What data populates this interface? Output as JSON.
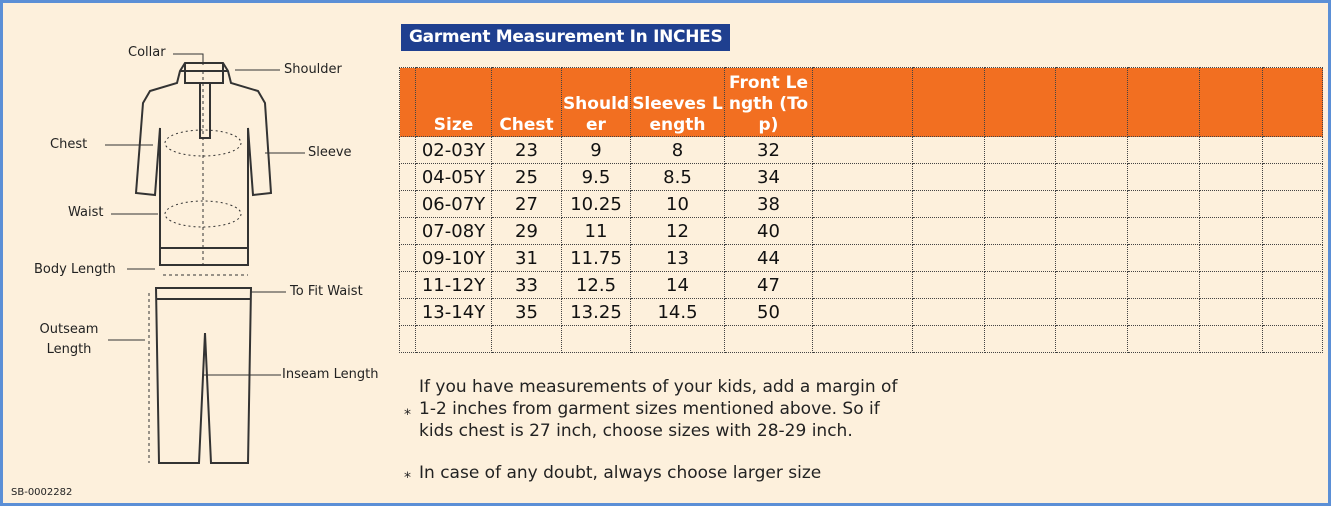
{
  "diagram": {
    "labels": [
      "Collar",
      "Shoulder",
      "Chest",
      "Sleeve",
      "Waist",
      "Body Length",
      "To Fit Waist",
      "Outseam Length",
      "Inseam Length"
    ]
  },
  "code": "SB-0002282",
  "title": "Garment Measurement In INCHES",
  "table": {
    "headers": [
      "Size",
      "Chest",
      "Shoulder",
      "Sleeves Length",
      "Front Length (Top)"
    ],
    "rows": [
      [
        "02-03Y",
        "23",
        "9",
        "8",
        "32"
      ],
      [
        "04-05Y",
        "25",
        "9.5",
        "8.5",
        "34"
      ],
      [
        "06-07Y",
        "27",
        "10.25",
        "10",
        "38"
      ],
      [
        "07-08Y",
        "29",
        "11",
        "12",
        "40"
      ],
      [
        "09-10Y",
        "31",
        "11.75",
        "13",
        "44"
      ],
      [
        "11-12Y",
        "33",
        "12.5",
        "14",
        "47"
      ],
      [
        "13-14Y",
        "35",
        "13.25",
        "14.5",
        "50"
      ]
    ]
  },
  "notes": [
    "If you have measurements of your kids, add a margin of 1-2 inches from garment sizes mentioned above. So if kids chest is 27 inch, choose sizes with 28-29 inch.",
    "In case of any doubt, always choose larger size"
  ]
}
